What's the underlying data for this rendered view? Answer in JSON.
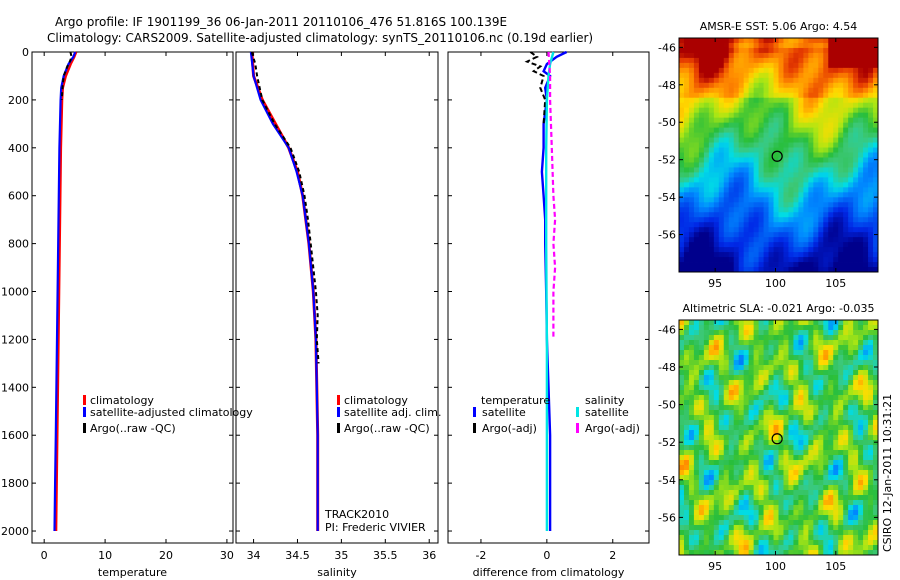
{
  "header": {
    "line1": "Argo profile: IF 1901199_36 06-Jan-2011 20110106_476 51.816S 100.139E",
    "line2": "Climatology: CARS2009. Satellite-adjusted climatology: synTS_20110106.nc (0.19d earlier)"
  },
  "side_text": "CSIRO 12-Jan-2011 10:31:21",
  "track_text": [
    "TRACK2010",
    "PI: Frederic VIVIER"
  ],
  "colors": {
    "climatology": "#ff0000",
    "satellite": "#0000ff",
    "argo": "#000000",
    "salinity_satellite": "#00e5e5",
    "salinity_argo": "#ff00ff"
  },
  "chart_data": [
    {
      "type": "line",
      "id": "temperature",
      "xlabel": "temperature",
      "ylabel": "",
      "xlim": [
        -2,
        31
      ],
      "ylim": [
        2050,
        0
      ],
      "xticks": [
        0,
        10,
        20,
        30
      ],
      "yticks": [
        0,
        200,
        400,
        600,
        800,
        1000,
        1200,
        1400,
        1600,
        1800,
        2000
      ],
      "legend": [
        "climatology",
        "satellite-adjusted climatology",
        "Argo(..raw -QC)"
      ],
      "series": [
        {
          "name": "climatology",
          "depth": [
            0,
            20,
            50,
            100,
            150,
            200,
            300,
            400,
            500,
            600,
            700,
            800,
            1000,
            1200,
            1400,
            1600,
            1800,
            2000
          ],
          "values": [
            5.2,
            4.9,
            4.3,
            3.5,
            3.0,
            2.9,
            2.8,
            2.7,
            2.65,
            2.6,
            2.55,
            2.5,
            2.4,
            2.3,
            2.2,
            2.1,
            2.0,
            1.9
          ]
        },
        {
          "name": "satellite-adjusted climatology",
          "depth": [
            0,
            20,
            50,
            100,
            150,
            200,
            300,
            400,
            500,
            600,
            700,
            800,
            1000,
            1200,
            1400,
            1600,
            1800,
            2000
          ],
          "values": [
            5.1,
            4.8,
            4.0,
            3.2,
            2.8,
            2.7,
            2.6,
            2.5,
            2.45,
            2.4,
            2.35,
            2.3,
            2.2,
            2.1,
            2.0,
            1.9,
            1.8,
            1.7
          ]
        },
        {
          "name": "Argo(..raw -QC)",
          "depth": [
            0,
            20,
            40,
            60,
            80,
            100,
            150,
            200
          ],
          "values": [
            4.3,
            4.5,
            4.2,
            3.8,
            3.5,
            3.2,
            3.0,
            2.9
          ]
        }
      ]
    },
    {
      "type": "line",
      "id": "salinity",
      "xlabel": "salinity",
      "ylabel": "",
      "xlim": [
        33.8,
        36.1
      ],
      "ylim": [
        2050,
        0
      ],
      "xticks": [
        34,
        34.5,
        35,
        35.5,
        36
      ],
      "yticks": [
        0,
        200,
        400,
        600,
        800,
        1000,
        1200,
        1400,
        1600,
        1800,
        2000
      ],
      "legend": [
        "climatology",
        "satellite adj. clim.",
        "Argo(..raw -QC)"
      ],
      "series": [
        {
          "name": "climatology",
          "depth": [
            0,
            100,
            200,
            300,
            400,
            500,
            600,
            800,
            1000,
            1200,
            1400,
            1600,
            1800,
            2000
          ],
          "values": [
            33.98,
            34.0,
            34.1,
            34.25,
            34.4,
            34.5,
            34.56,
            34.63,
            34.68,
            34.71,
            34.72,
            34.73,
            34.73,
            34.73
          ]
        },
        {
          "name": "satellite adj. clim.",
          "depth": [
            0,
            100,
            200,
            300,
            400,
            500,
            600,
            800,
            1000,
            1200,
            1400,
            1600,
            1800,
            2000
          ],
          "values": [
            33.97,
            34.0,
            34.08,
            34.22,
            34.4,
            34.49,
            34.56,
            34.63,
            34.68,
            34.71,
            34.72,
            34.73,
            34.73,
            34.73
          ]
        },
        {
          "name": "Argo(..raw -QC)",
          "depth": [
            0,
            50,
            100,
            200,
            300,
            400,
            500,
            600,
            700,
            800,
            900,
            1000,
            1100,
            1200,
            1300
          ],
          "values": [
            33.98,
            34.02,
            34.04,
            34.1,
            34.24,
            34.42,
            34.52,
            34.58,
            34.62,
            34.65,
            34.68,
            34.71,
            34.73,
            34.72,
            34.74
          ]
        }
      ]
    },
    {
      "type": "line",
      "id": "difference",
      "xlabel": "difference from climatology",
      "ylabel": "",
      "xlim": [
        -3,
        3.1
      ],
      "ylim": [
        2050,
        0
      ],
      "xticks": [
        -2,
        0,
        2
      ],
      "yticks": [
        0,
        200,
        400,
        600,
        800,
        1000,
        1200,
        1400,
        1600,
        1800,
        2000
      ],
      "legend_headers": [
        "temperature",
        "salinity"
      ],
      "legend": [
        "satellite",
        "Argo(-adj)",
        "satellite",
        "Argo(-adj)"
      ],
      "series": [
        {
          "name": "temperature satellite",
          "depth": [
            0,
            20,
            50,
            80,
            100,
            150,
            200,
            300,
            400,
            500,
            600,
            700,
            800,
            1000,
            1200,
            1400,
            1600,
            1800,
            2000
          ],
          "values": [
            0.6,
            0.3,
            0.0,
            -0.1,
            0.1,
            -0.05,
            0.0,
            -0.1,
            -0.1,
            -0.15,
            -0.1,
            -0.05,
            -0.05,
            -0.02,
            0.0,
            0.05,
            0.1,
            0.1,
            0.1
          ]
        },
        {
          "name": "temperature Argo(-adj)",
          "depth": [
            0,
            20,
            40,
            60,
            80,
            100,
            150,
            200,
            300
          ],
          "values": [
            -0.5,
            -0.3,
            -0.6,
            -0.2,
            -0.4,
            -0.1,
            -0.2,
            -0.05,
            -0.1
          ]
        },
        {
          "name": "salinity satellite",
          "depth": [
            0,
            50,
            100,
            200,
            400,
            600,
            800,
            1000,
            1200,
            1400,
            1600,
            1800,
            2000
          ],
          "values": [
            0.2,
            0.1,
            0.05,
            0.0,
            -0.02,
            -0.02,
            -0.02,
            -0.01,
            0.0,
            0.0,
            0.0,
            0.0,
            0.0
          ]
        },
        {
          "name": "salinity Argo(-adj)",
          "depth": [
            0,
            100,
            200,
            400,
            600,
            700,
            800,
            900,
            1000,
            1200
          ],
          "values": [
            0.05,
            0.1,
            0.1,
            0.15,
            0.2,
            0.25,
            0.2,
            0.25,
            0.2,
            0.2
          ]
        }
      ]
    },
    {
      "type": "heatmap",
      "id": "sst_map",
      "title": "AMSR-E SST: 5.06 Argo: 4.54",
      "xlim": [
        92,
        108.5
      ],
      "ylim": [
        -58,
        -45.5
      ],
      "xticks": [
        95,
        100,
        105
      ],
      "yticks": [
        -46,
        -48,
        -50,
        -52,
        -54,
        -56
      ],
      "marker": {
        "lon": 100.139,
        "lat": -51.816
      }
    },
    {
      "type": "heatmap",
      "id": "sla_map",
      "title": "Altimetric SLA: -0.021 Argo: -0.035",
      "xlim": [
        92,
        108.5
      ],
      "ylim": [
        -58,
        -45.5
      ],
      "xticks": [
        95,
        100,
        105
      ],
      "yticks": [
        -46,
        -48,
        -50,
        -52,
        -54,
        -56
      ],
      "marker": {
        "lon": 100.139,
        "lat": -51.816
      }
    }
  ]
}
